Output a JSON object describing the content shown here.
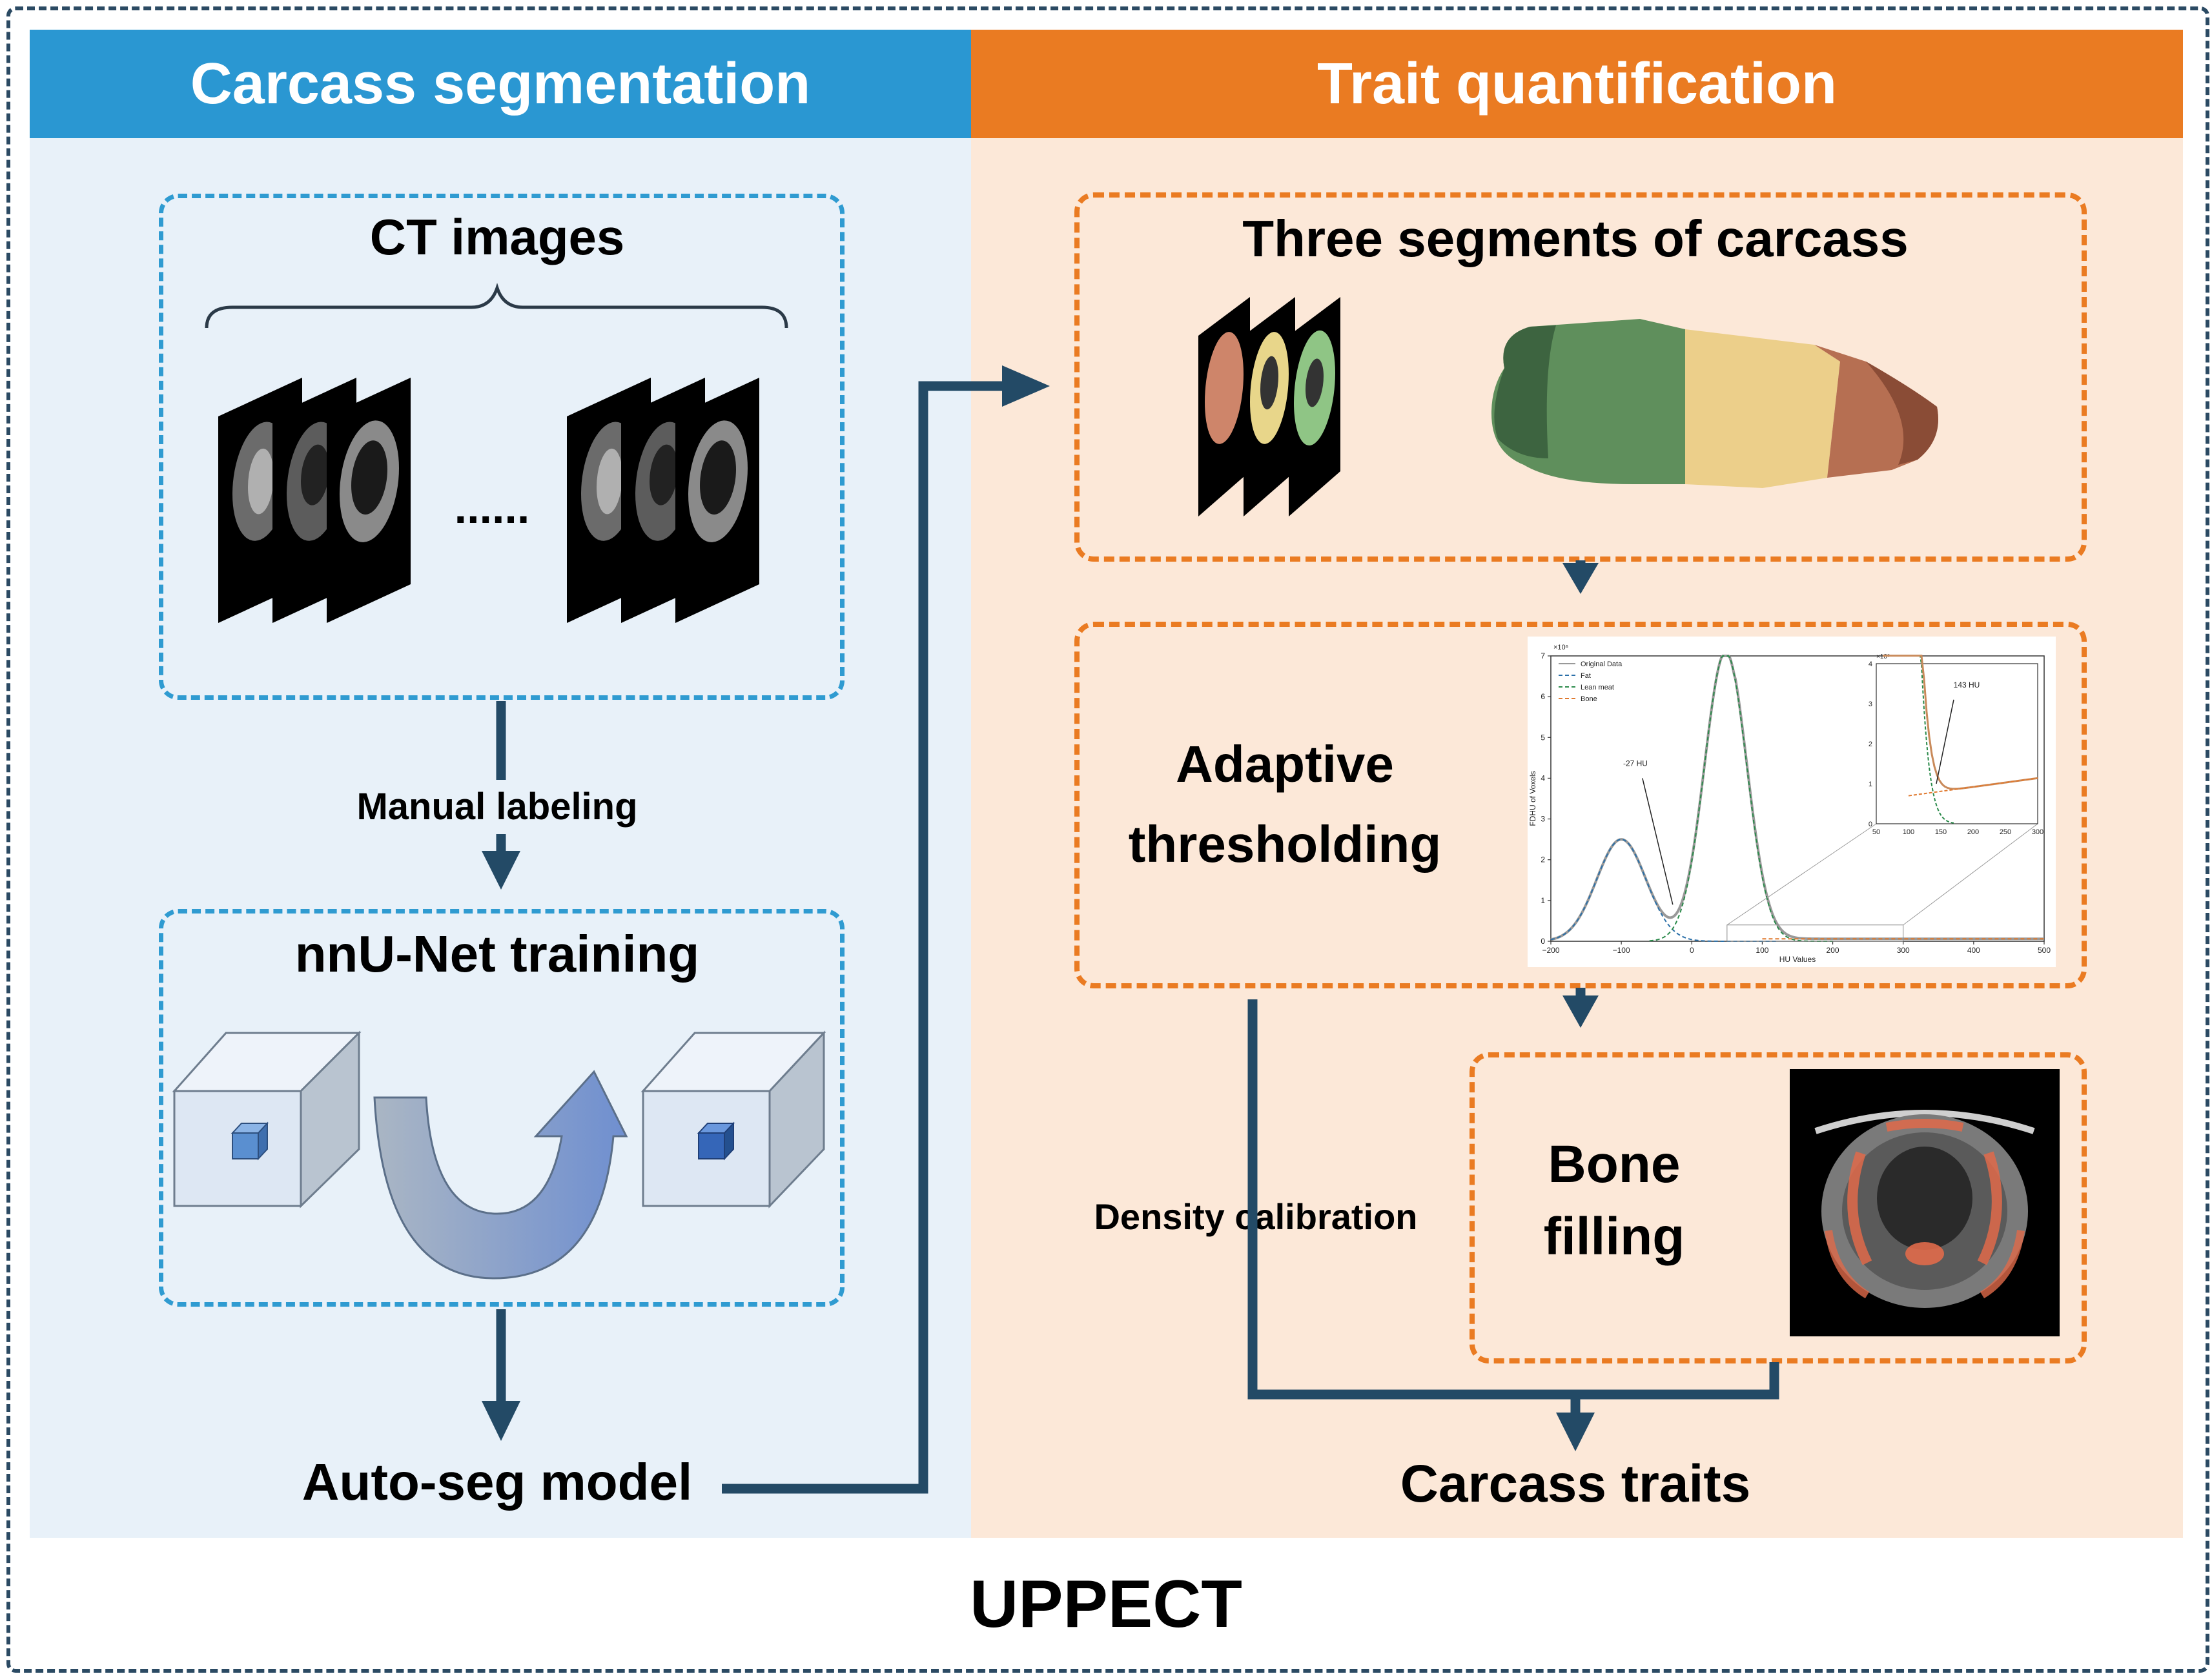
{
  "headers": {
    "left": "Carcass segmentation",
    "right": "Trait quantification"
  },
  "boxes": {
    "ct_images": "CT images",
    "ct_dots": "......",
    "nnunet": "nnU-Net training",
    "three_segments": "Three segments of carcass",
    "adaptive_line1": "Adaptive",
    "adaptive_line2": "thresholding",
    "bone_line1": "Bone",
    "bone_line2": "filling"
  },
  "labels": {
    "manual_labeling": "Manual labeling",
    "auto_seg": "Auto-seg model",
    "density_calibration": "Density calibration",
    "carcass_traits": "Carcass traits",
    "footer": "UPPECT"
  },
  "colors": {
    "blue_accent": "#2a97d2",
    "orange_accent": "#ea7b22",
    "arrow": "#234a66",
    "left_bg": "#e8f1f9",
    "right_bg": "#fce8d8"
  },
  "chart_data": {
    "type": "line",
    "xlabel": "HU Values",
    "ylabel": "FDHU of Voxels",
    "y_multiplier": "×10⁶",
    "xlim": [
      -200,
      500
    ],
    "ylim": [
      0,
      7
    ],
    "x_ticks": [
      "−200",
      "−100",
      "0",
      "100",
      "200",
      "300",
      "400",
      "500"
    ],
    "y_ticks": [
      "0",
      "1",
      "2",
      "3",
      "4",
      "5",
      "6",
      "7"
    ],
    "legend": [
      "Original Data",
      "Fat",
      "Lean meat",
      "Bone"
    ],
    "annotation": "-27 HU",
    "inset": {
      "y_multiplier": "×10⁵",
      "xlim": [
        50,
        300
      ],
      "ylim": [
        0,
        4
      ],
      "x_ticks": [
        "50",
        "100",
        "150",
        "200",
        "250",
        "300"
      ],
      "y_ticks": [
        "0",
        "1",
        "2",
        "3",
        "4"
      ],
      "annotation": "143 HU"
    }
  }
}
